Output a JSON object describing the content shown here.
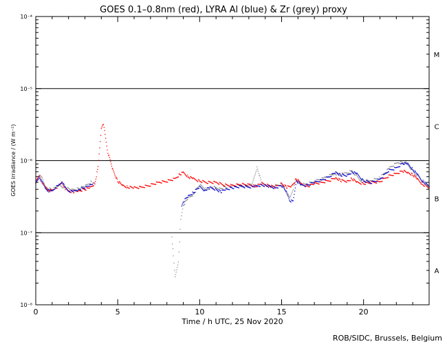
{
  "chart_data": {
    "type": "scatter",
    "title": "GOES 0.1–0.8nm (red), LYRA Al (blue) & Zr (grey) proxy",
    "xlabel": "Time / h UTC, 25 Nov 2020",
    "ylabel": "GOES irradiance / (W m⁻²)",
    "credit": "ROB/SIDC, Brussels, Belgium",
    "xlim": [
      0,
      24
    ],
    "ylim": [
      1e-08,
      0.0001
    ],
    "yscale": "log",
    "grid": false,
    "x_ticks": [
      0,
      5,
      10,
      15,
      20
    ],
    "x_tick_labels": [
      "0",
      "5",
      "10",
      "15",
      "20"
    ],
    "y_ticks": [
      1e-08,
      1e-07,
      1e-06,
      1e-05,
      0.0001
    ],
    "y_tick_labels": [
      "10⁻⁸",
      "10⁻⁷",
      "10⁻⁶",
      "10⁻⁵",
      "10⁻⁴"
    ],
    "flare_class_lines": [
      1e-07,
      1e-06,
      1e-05
    ],
    "flare_class_labels": [
      {
        "label": "A",
        "y": 3e-08
      },
      {
        "label": "B",
        "y": 3e-07
      },
      {
        "label": "C",
        "y": 3e-06
      },
      {
        "label": "M",
        "y": 3e-05
      }
    ],
    "series": [
      {
        "name": "GOES 0.1–0.8nm",
        "color": "#ff0000",
        "x": [
          0.0,
          0.2,
          0.4,
          0.6,
          0.8,
          1.0,
          1.2,
          1.4,
          1.6,
          1.8,
          2.0,
          2.3,
          2.6,
          3.0,
          3.3,
          3.6,
          3.8,
          4.0,
          4.1,
          4.2,
          4.4,
          4.7,
          5.0,
          5.3,
          5.6,
          6.0,
          6.5,
          7.0,
          7.5,
          8.0,
          8.5,
          8.8,
          9.0,
          9.3,
          9.6,
          10.0,
          10.5,
          11.0,
          11.5,
          12.0,
          12.5,
          13.0,
          13.4,
          13.8,
          14.2,
          14.6,
          15.0,
          15.3,
          15.6,
          15.9,
          16.2,
          16.6,
          17.0,
          17.5,
          18.0,
          18.3,
          18.6,
          19.0,
          19.3,
          19.6,
          20.0,
          20.5,
          21.0,
          21.5,
          22.0,
          22.4,
          22.7,
          23.0,
          23.3,
          23.6,
          24.0
        ],
        "y": [
          5e-07,
          6.2e-07,
          5e-07,
          4.2e-07,
          3.9e-07,
          3.8e-07,
          4.2e-07,
          4.4e-07,
          5e-07,
          4.1e-07,
          3.8e-07,
          3.7e-07,
          3.8e-07,
          4e-07,
          4.2e-07,
          4.8e-07,
          8e-07,
          2.8e-06,
          3.3e-06,
          2.6e-06,
          1.3e-06,
          7.5e-07,
          5.2e-07,
          4.5e-07,
          4.3e-07,
          4.2e-07,
          4.3e-07,
          4.6e-07,
          5e-07,
          5.2e-07,
          5.6e-07,
          6.5e-07,
          6.8e-07,
          6e-07,
          5.6e-07,
          5.2e-07,
          5e-07,
          5e-07,
          4.6e-07,
          4.5e-07,
          4.7e-07,
          4.6e-07,
          4.4e-07,
          4.8e-07,
          4.5e-07,
          4.3e-07,
          4.8e-07,
          4.3e-07,
          4.4e-07,
          5.6e-07,
          4.7e-07,
          4.4e-07,
          4.8e-07,
          5e-07,
          5.4e-07,
          5.8e-07,
          5.3e-07,
          5.2e-07,
          5.6e-07,
          5e-07,
          4.8e-07,
          5e-07,
          5.1e-07,
          6.1e-07,
          6.6e-07,
          7.2e-07,
          6.8e-07,
          6.4e-07,
          5.5e-07,
          4.7e-07,
          4.2e-07
        ]
      },
      {
        "name": "LYRA Al",
        "color": "#1010d0",
        "x": [
          0.0,
          0.2,
          0.4,
          0.6,
          0.8,
          1.0,
          1.2,
          1.4,
          1.6,
          1.8,
          2.0,
          2.3,
          2.6,
          3.0,
          3.3,
          3.5,
          8.9,
          9.0,
          9.3,
          9.6,
          10.0,
          10.3,
          10.6,
          11.0,
          11.3,
          11.6,
          12.0,
          12.5,
          13.0,
          13.4,
          13.8,
          14.2,
          14.6,
          15.0,
          15.3,
          15.5,
          15.7,
          15.9,
          16.2,
          16.6,
          17.0,
          17.5,
          18.0,
          18.3,
          18.6,
          19.0,
          19.3,
          19.6,
          20.0,
          20.5,
          21.0,
          21.5,
          22.0,
          22.4,
          22.7,
          23.0,
          23.3,
          23.6,
          24.0
        ],
        "y": [
          4.8e-07,
          6e-07,
          4.9e-07,
          4.1e-07,
          3.8e-07,
          3.8e-07,
          4.3e-07,
          4.5e-07,
          5.2e-07,
          4.2e-07,
          3.8e-07,
          3.7e-07,
          4e-07,
          4.2e-07,
          4.6e-07,
          4.9e-07,
          2.3e-07,
          2.7e-07,
          3.2e-07,
          3.6e-07,
          4.3e-07,
          3.9e-07,
          4.2e-07,
          4e-07,
          3.7e-07,
          4e-07,
          4.2e-07,
          4.4e-07,
          4.3e-07,
          4.4e-07,
          4.6e-07,
          4.4e-07,
          4.2e-07,
          4.5e-07,
          3.7e-07,
          2.8e-07,
          2.7e-07,
          5.3e-07,
          4.5e-07,
          4.6e-07,
          5e-07,
          5.4e-07,
          6.2e-07,
          6.9e-07,
          6.3e-07,
          6.2e-07,
          7e-07,
          6.5e-07,
          5.2e-07,
          5e-07,
          5.5e-07,
          7.2e-07,
          7.9e-07,
          9.2e-07,
          9e-07,
          7.6e-07,
          6.3e-07,
          5.2e-07,
          4.4e-07
        ]
      },
      {
        "name": "LYRA Zr",
        "color": "#909090",
        "x": [
          0.0,
          0.3,
          0.6,
          1.0,
          1.4,
          1.8,
          2.2,
          2.6,
          3.0,
          3.4,
          8.3,
          8.5,
          8.7,
          8.85,
          9.0,
          9.3,
          9.6,
          10.0,
          10.4,
          10.8,
          11.2,
          11.6,
          12.0,
          12.6,
          13.2,
          13.5,
          13.8,
          14.4,
          15.0,
          15.5,
          15.9,
          16.4,
          17.0,
          17.6,
          18.2,
          18.8,
          19.3,
          19.8,
          20.4,
          21.0,
          21.6,
          22.1,
          22.6,
          23.1,
          23.6,
          24.0
        ],
        "y": [
          5e-07,
          6.3e-07,
          4.3e-07,
          3.9e-07,
          4.6e-07,
          4.2e-07,
          3.9e-07,
          4.1e-07,
          4.4e-07,
          5.1e-07,
          9e-08,
          2.4e-08,
          4e-08,
          1.5e-07,
          2.4e-07,
          3e-07,
          3.4e-07,
          4.6e-07,
          4e-07,
          4.3e-07,
          4.1e-07,
          4.3e-07,
          4.5e-07,
          4.5e-07,
          4.6e-07,
          8.2e-07,
          4.7e-07,
          4.4e-07,
          4.7e-07,
          3e-07,
          5.4e-07,
          4.6e-07,
          5.2e-07,
          5.7e-07,
          6.6e-07,
          6.5e-07,
          7.2e-07,
          5.4e-07,
          5.2e-07,
          5.8e-07,
          8e-07,
          9.5e-07,
          9.3e-07,
          6.8e-07,
          5.3e-07,
          4.4e-07
        ]
      }
    ]
  }
}
